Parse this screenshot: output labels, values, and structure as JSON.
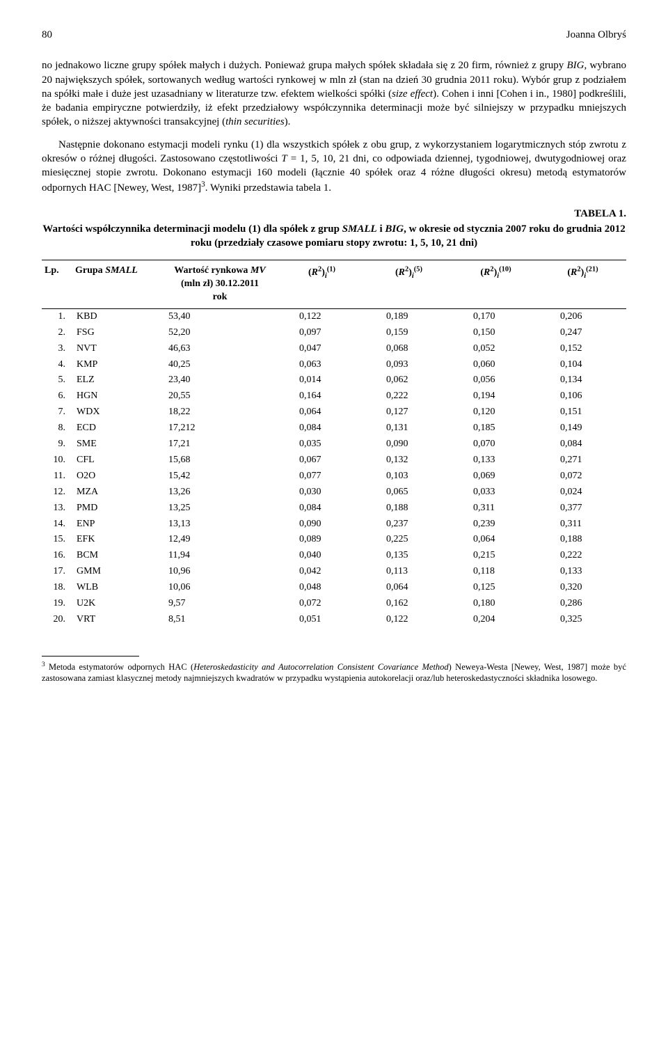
{
  "header": {
    "page_number": "80",
    "author": "Joanna Olbryś"
  },
  "paragraph1_html": "no jednakowo liczne grupy spółek małych i dużych. Ponieważ grupa małych spółek składała się z 20 firm, również z grupy <span class='italic'>BIG</span>, wybrano 20 największych spółek, sortowanych według wartości rynkowej w mln zł (stan na dzień 30 grudnia 2011 roku). Wybór grup z podziałem na spółki małe i duże jest uzasadniany w literaturze tzw. efektem wielkości spółki (<span class='italic'>size effect</span>). Cohen i inni [Cohen i in., 1980] podkreślili, że badania empiryczne potwierdziły, iż efekt przedziałowy współczynnika determinacji może być silniejszy w przypadku mniejszych spółek, o niższej aktywności transakcyjnej (<span class='italic'>thin securities</span>).",
  "paragraph2_html": "Następnie dokonano estymacji modeli rynku (1) dla wszystkich spółek z obu grup, z wykorzystaniem logarytmicznych stóp zwrotu z okresów o różnej długości. Zastosowano częstotliwości <span class='italic'>T</span> = 1, 5, 10, 21 dni, co odpowiada dziennej, tygodniowej, dwutygodniowej oraz miesięcznej stopie zwrotu. Dokonano estymacji 160 modeli (łącznie 40 spółek oraz 4 różne długości okresu) metodą estymatorów odpornych HAC [Newey, West, 1987]<sup>3</sup>. Wyniki przedstawia tabela 1.",
  "table": {
    "label": "TABELA 1.",
    "title_html": "Wartości współczynnika determinacji modelu (1) dla spółek z grup <span class='italic'>SMALL</span> i <span class='italic'>BIG</span>, w okresie od stycznia 2007 roku do grudnia 2012 roku (przedziały czasowe pomiaru stopy zwrotu: 1, 5, 10, 21 dni)",
    "columns": {
      "lp": "Lp.",
      "grupa_html": "Grupa <span class='italic'>SMALL</span>",
      "mv_html": "Wartość rynkowa <span class='italic'>MV</span><br>(mln zł) 30.12.2011<br>rok",
      "r1_html": "(<span class='italic'>R</span><sup>2</sup>)<sub><span class='italic'>i</span></sub><sup>(1)</sup>",
      "r5_html": "(<span class='italic'>R</span><sup>2</sup>)<sub><span class='italic'>i</span></sub><sup>(5)</sup>",
      "r10_html": "(<span class='italic'>R</span><sup>2</sup>)<sub><span class='italic'>i</span></sub><sup>(10)</sup>",
      "r21_html": "(<span class='italic'>R</span><sup>2</sup>)<sub><span class='italic'>i</span></sub><sup>(21)</sup>"
    },
    "rows": [
      {
        "lp": "1.",
        "name": "KBD",
        "mv": "53,40",
        "r1": "0,122",
        "r5": "0,189",
        "r10": "0,170",
        "r21": "0,206"
      },
      {
        "lp": "2.",
        "name": "FSG",
        "mv": "52,20",
        "r1": "0,097",
        "r5": "0,159",
        "r10": "0,150",
        "r21": "0,247"
      },
      {
        "lp": "3.",
        "name": "NVT",
        "mv": "46,63",
        "r1": "0,047",
        "r5": "0,068",
        "r10": "0,052",
        "r21": "0,152"
      },
      {
        "lp": "4.",
        "name": "KMP",
        "mv": "40,25",
        "r1": "0,063",
        "r5": "0,093",
        "r10": "0,060",
        "r21": "0,104"
      },
      {
        "lp": "5.",
        "name": "ELZ",
        "mv": "23,40",
        "r1": "0,014",
        "r5": "0,062",
        "r10": "0,056",
        "r21": "0,134"
      },
      {
        "lp": "6.",
        "name": "HGN",
        "mv": "20,55",
        "r1": "0,164",
        "r5": "0,222",
        "r10": "0,194",
        "r21": "0,106"
      },
      {
        "lp": "7.",
        "name": "WDX",
        "mv": "18,22",
        "r1": "0,064",
        "r5": "0,127",
        "r10": "0,120",
        "r21": "0,151"
      },
      {
        "lp": "8.",
        "name": "ECD",
        "mv": "17,212",
        "r1": "0,084",
        "r5": "0,131",
        "r10": "0,185",
        "r21": "0,149"
      },
      {
        "lp": "9.",
        "name": "SME",
        "mv": "17,21",
        "r1": "0,035",
        "r5": "0,090",
        "r10": "0,070",
        "r21": "0,084"
      },
      {
        "lp": "10.",
        "name": "CFL",
        "mv": "15,68",
        "r1": "0,067",
        "r5": "0,132",
        "r10": "0,133",
        "r21": "0,271"
      },
      {
        "lp": "11.",
        "name": "O2O",
        "mv": "15,42",
        "r1": "0,077",
        "r5": "0,103",
        "r10": "0,069",
        "r21": "0,072"
      },
      {
        "lp": "12.",
        "name": "MZA",
        "mv": "13,26",
        "r1": "0,030",
        "r5": "0,065",
        "r10": "0,033",
        "r21": "0,024"
      },
      {
        "lp": "13.",
        "name": "PMD",
        "mv": "13,25",
        "r1": "0,084",
        "r5": "0,188",
        "r10": "0,311",
        "r21": "0,377"
      },
      {
        "lp": "14.",
        "name": "ENP",
        "mv": "13,13",
        "r1": "0,090",
        "r5": "0,237",
        "r10": "0,239",
        "r21": "0,311"
      },
      {
        "lp": "15.",
        "name": "EFK",
        "mv": "12,49",
        "r1": "0,089",
        "r5": "0,225",
        "r10": "0,064",
        "r21": "0,188"
      },
      {
        "lp": "16.",
        "name": "BCM",
        "mv": "11,94",
        "r1": "0,040",
        "r5": "0,135",
        "r10": "0,215",
        "r21": "0,222"
      },
      {
        "lp": "17.",
        "name": "GMM",
        "mv": "10,96",
        "r1": "0,042",
        "r5": "0,113",
        "r10": "0,118",
        "r21": "0,133"
      },
      {
        "lp": "18.",
        "name": "WLB",
        "mv": "10,06",
        "r1": "0,048",
        "r5": "0,064",
        "r10": "0,125",
        "r21": "0,320"
      },
      {
        "lp": "19.",
        "name": "U2K",
        "mv": "9,57",
        "r1": "0,072",
        "r5": "0,162",
        "r10": "0,180",
        "r21": "0,286"
      },
      {
        "lp": "20.",
        "name": "VRT",
        "mv": "8,51",
        "r1": "0,051",
        "r5": "0,122",
        "r10": "0,204",
        "r21": "0,325"
      }
    ]
  },
  "footnote_html": "<sup>3</sup> Metoda estymatorów odpornych HAC (<span class='italic'>Heteroskedasticity and Autocorrelation Consistent Covariance Method</span>) Neweya-Westa [Newey, West, 1987] może być zastosowana zamiast klasycznej metody najmniejszych kwadratów w przypadku wystąpienia autokorelacji oraz/lub heteroskedastyczności składnika losowego."
}
